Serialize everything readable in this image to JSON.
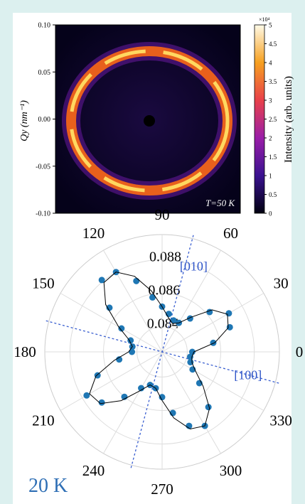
{
  "chart_data": [
    {
      "type": "image",
      "ylabel": "Qy (nm⁻¹)",
      "ylim": [
        -0.1,
        0.1
      ],
      "yticks": [
        {
          "value": 0.1,
          "label": "0.10"
        },
        0.05,
        {
          "value": 0,
          "label": "0.00"
        },
        -0.05,
        {
          "value": -0.1,
          "label": "-0.10"
        }
      ],
      "colorbar_label": "Intensity (arb. units)",
      "colorbar_multiplier": "×10⁴",
      "clim": [
        0,
        5
      ],
      "cticks": [
        0,
        0.5,
        1,
        1.5,
        2,
        2.5,
        3,
        3.5,
        4,
        4.5,
        5
      ],
      "annotation": "T=50 K"
    },
    {
      "type": "polar",
      "label": "20 K",
      "rlim": [
        0.0825,
        0.0895
      ],
      "rticks": [
        0.084,
        0.086,
        0.088
      ],
      "thetaticks": [
        0,
        30,
        60,
        90,
        120,
        150,
        180,
        210,
        240,
        270,
        300,
        330
      ],
      "direction_lines": [
        {
          "label": "[010]",
          "angle": 75
        },
        {
          "label": "[100]",
          "angle": -15
        }
      ],
      "theta": [
        0,
        10,
        20,
        30,
        40,
        50,
        60,
        70,
        80,
        90,
        100,
        110,
        120,
        130,
        140,
        150,
        160,
        170,
        180,
        190,
        200,
        210,
        220,
        230,
        240,
        250,
        260,
        270,
        280,
        290,
        300,
        310,
        320,
        330,
        340,
        350
      ],
      "series": [
        {
          "color": "#1f77b4",
          "style": "points",
          "values": [
            0.0843,
            0.0856,
            0.0868,
            0.0871,
            0.0862,
            0.0851,
            0.0845,
            0.0845,
            0.0848,
            0.0852,
            0.0858,
            0.087,
            0.088,
            0.0881,
            0.0866,
            0.0853,
            0.0845,
            0.0843,
            0.0843,
            0.0851,
            0.0866,
            0.0877,
            0.0872,
            0.086,
            0.085,
            0.0846,
            0.0847,
            0.0852,
            0.0862,
            0.0872,
            0.0876,
            0.0868,
            0.0854,
            0.0846,
            0.0843,
            0.0842
          ]
        },
        {
          "color": "#000000",
          "style": "line",
          "values": [
            0.0844,
            0.0857,
            0.0867,
            0.087,
            0.0864,
            0.0852,
            0.0845,
            0.0843,
            0.0846,
            0.0852,
            0.0862,
            0.0873,
            0.088,
            0.0879,
            0.0869,
            0.0855,
            0.0846,
            0.0843,
            0.0845,
            0.0854,
            0.0867,
            0.0875,
            0.0873,
            0.0863,
            0.0852,
            0.0846,
            0.0847,
            0.0854,
            0.0865,
            0.0874,
            0.0876,
            0.0869,
            0.0857,
            0.0848,
            0.0844,
            0.0843
          ]
        }
      ]
    }
  ]
}
